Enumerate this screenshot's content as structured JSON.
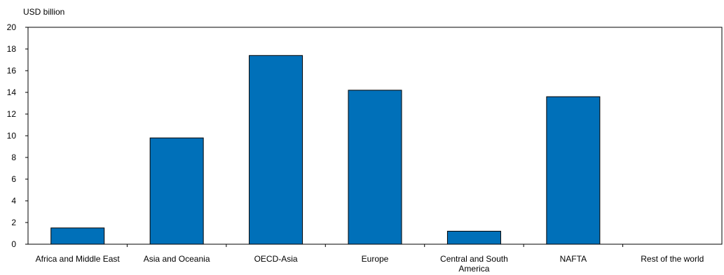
{
  "chart_data": {
    "type": "bar",
    "title": "",
    "xlabel": "",
    "ylabel": "USD billion",
    "ylim": [
      0,
      20
    ],
    "yticks": [
      0,
      2,
      4,
      6,
      8,
      10,
      12,
      14,
      16,
      18,
      20
    ],
    "grid": false,
    "categories": [
      "Africa and Middle East",
      "Asia and Oceania",
      "OECD-Asia",
      "Europe",
      "Central and South America",
      "NAFTA",
      "Rest of the world"
    ],
    "values": [
      1.5,
      9.8,
      17.4,
      14.2,
      1.2,
      13.6,
      0
    ],
    "colors": {
      "bar_fill": "#0070B9",
      "bar_stroke": "#000000",
      "axis": "#000000"
    }
  }
}
